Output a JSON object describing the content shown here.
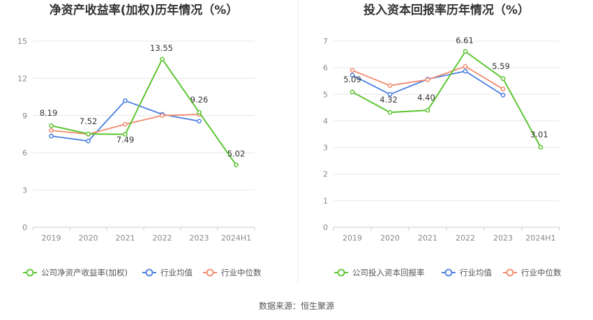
{
  "chart_data": [
    {
      "type": "line",
      "title": "净资产收益率(加权)历年情况（%）",
      "xlabel": "",
      "ylabel": "",
      "ylim": [
        0,
        15
      ],
      "yticks": [
        0,
        3,
        6,
        9,
        12,
        15
      ],
      "categories": [
        "2019",
        "2020",
        "2021",
        "2022",
        "2023",
        "2024H1"
      ],
      "grid": true,
      "legend_position": "bottom",
      "series": [
        {
          "name": "公司净资产收益率(加权)",
          "color": "#5cc531",
          "values": [
            8.19,
            7.52,
            7.49,
            13.55,
            9.26,
            5.02
          ],
          "labels": [
            "8.19",
            "7.52",
            "7.49",
            "13.55",
            "9.26",
            "5.02"
          ]
        },
        {
          "name": "行业均值",
          "color": "#4a7fe0",
          "values": [
            7.35,
            6.95,
            10.2,
            9.1,
            8.55,
            null
          ]
        },
        {
          "name": "行业中位数",
          "color": "#f28a6c",
          "values": [
            7.8,
            7.5,
            8.3,
            9.0,
            9.1,
            null
          ]
        }
      ]
    },
    {
      "type": "line",
      "title": "投入资本回报率历年情况（%）",
      "xlabel": "",
      "ylabel": "",
      "ylim": [
        0,
        7
      ],
      "yticks": [
        0,
        1,
        2,
        3,
        4,
        5,
        6,
        7
      ],
      "categories": [
        "2019",
        "2020",
        "2021",
        "2022",
        "2023",
        "2024H1"
      ],
      "grid": true,
      "legend_position": "bottom",
      "series": [
        {
          "name": "公司投入资本回报率",
          "color": "#5cc531",
          "values": [
            5.09,
            4.32,
            4.4,
            6.61,
            5.59,
            3.01
          ],
          "labels": [
            "5.09",
            "4.32",
            "4.40",
            "6.61",
            "5.59",
            "3.01"
          ]
        },
        {
          "name": "行业均值",
          "color": "#4a7fe0",
          "values": [
            5.72,
            5.0,
            5.57,
            5.87,
            4.97,
            null
          ]
        },
        {
          "name": "行业中位数",
          "color": "#f28a6c",
          "values": [
            5.9,
            5.33,
            5.55,
            6.05,
            5.2,
            null
          ]
        }
      ]
    }
  ],
  "source_text": "数据来源：恒生聚源"
}
